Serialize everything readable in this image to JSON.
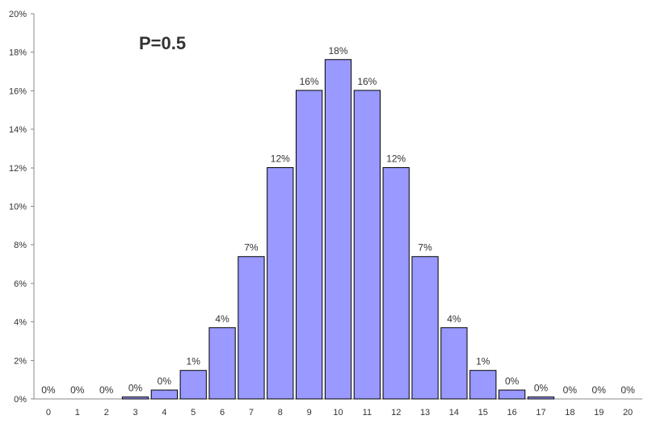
{
  "chart_data": {
    "type": "bar",
    "title": "P=0.5",
    "xlabel": "",
    "ylabel": "",
    "categories": [
      "0",
      "1",
      "2",
      "3",
      "4",
      "5",
      "6",
      "7",
      "8",
      "9",
      "10",
      "11",
      "12",
      "13",
      "14",
      "15",
      "16",
      "17",
      "18",
      "19",
      "20"
    ],
    "values": [
      0.0001,
      0.0,
      0.0,
      0.1,
      0.46,
      1.48,
      3.7,
      7.39,
      12.01,
      16.02,
      17.62,
      16.02,
      12.01,
      7.39,
      3.7,
      1.48,
      0.46,
      0.1,
      0.0,
      0.0,
      0.0
    ],
    "value_labels": [
      "0%",
      "0%",
      "0%",
      "0%",
      "0%",
      "1%",
      "4%",
      "7%",
      "12%",
      "16%",
      "18%",
      "16%",
      "12%",
      "7%",
      "4%",
      "1%",
      "0%",
      "0%",
      "0%",
      "0%",
      "0%"
    ],
    "ylim": [
      0,
      20
    ],
    "yticks": [
      "0%",
      "2%",
      "4%",
      "6%",
      "8%",
      "10%",
      "12%",
      "14%",
      "16%",
      "18%",
      "20%"
    ],
    "grid": false,
    "legend": "none",
    "colors": {
      "bar_fill": "#9999ff",
      "bar_stroke": "#000000",
      "axis": "#888888",
      "text": "#333333"
    }
  }
}
